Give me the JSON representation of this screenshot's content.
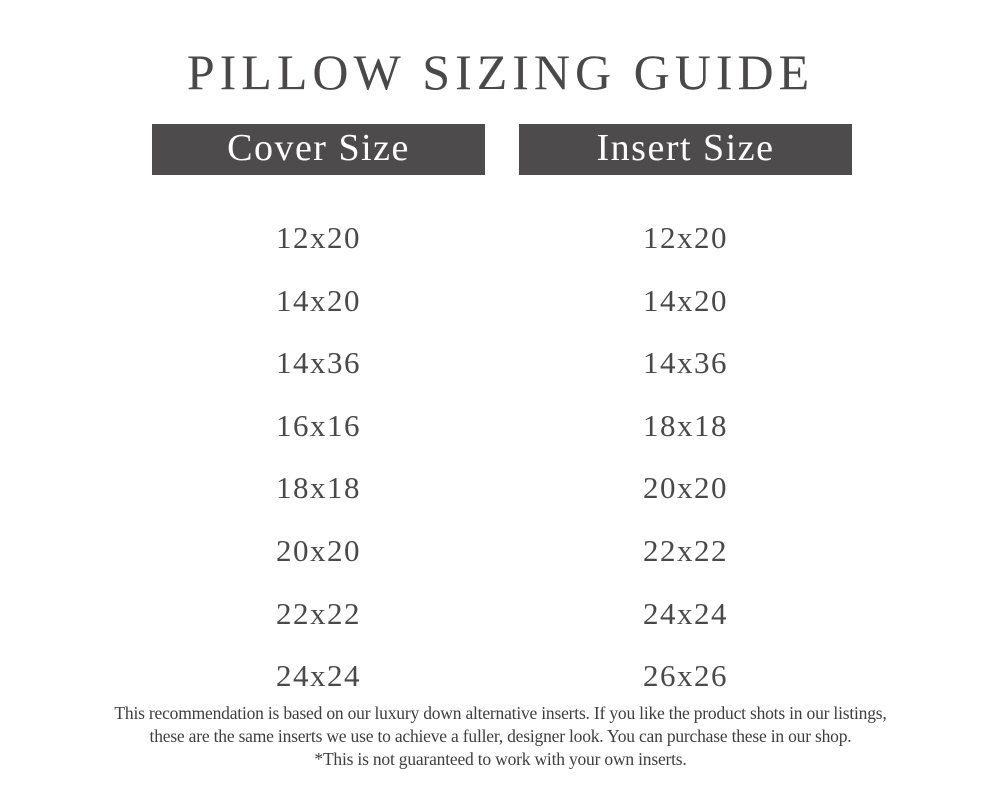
{
  "title": "PILLOW SIZING GUIDE",
  "columns": {
    "cover": {
      "header": "Cover Size",
      "sizes": [
        "12x20",
        "14x20",
        "14x36",
        "16x16",
        "18x18",
        "20x20",
        "22x22",
        "24x24"
      ]
    },
    "insert": {
      "header": "Insert Size",
      "sizes": [
        "12x20",
        "14x20",
        "14x36",
        "18x18",
        "20x20",
        "22x22",
        "24x24",
        "26x26"
      ]
    }
  },
  "colors": {
    "header_bg": "#4d4b4c",
    "text": "#4a4849"
  },
  "footer": {
    "line1": "This recommendation is based on our luxury down alternative inserts. If you like the product shots in our listings,",
    "line2": "these are the same inserts we use to achieve a fuller, designer look. You can purchase these in our shop.",
    "line3": "*This is not guaranteed to work with your own inserts."
  }
}
